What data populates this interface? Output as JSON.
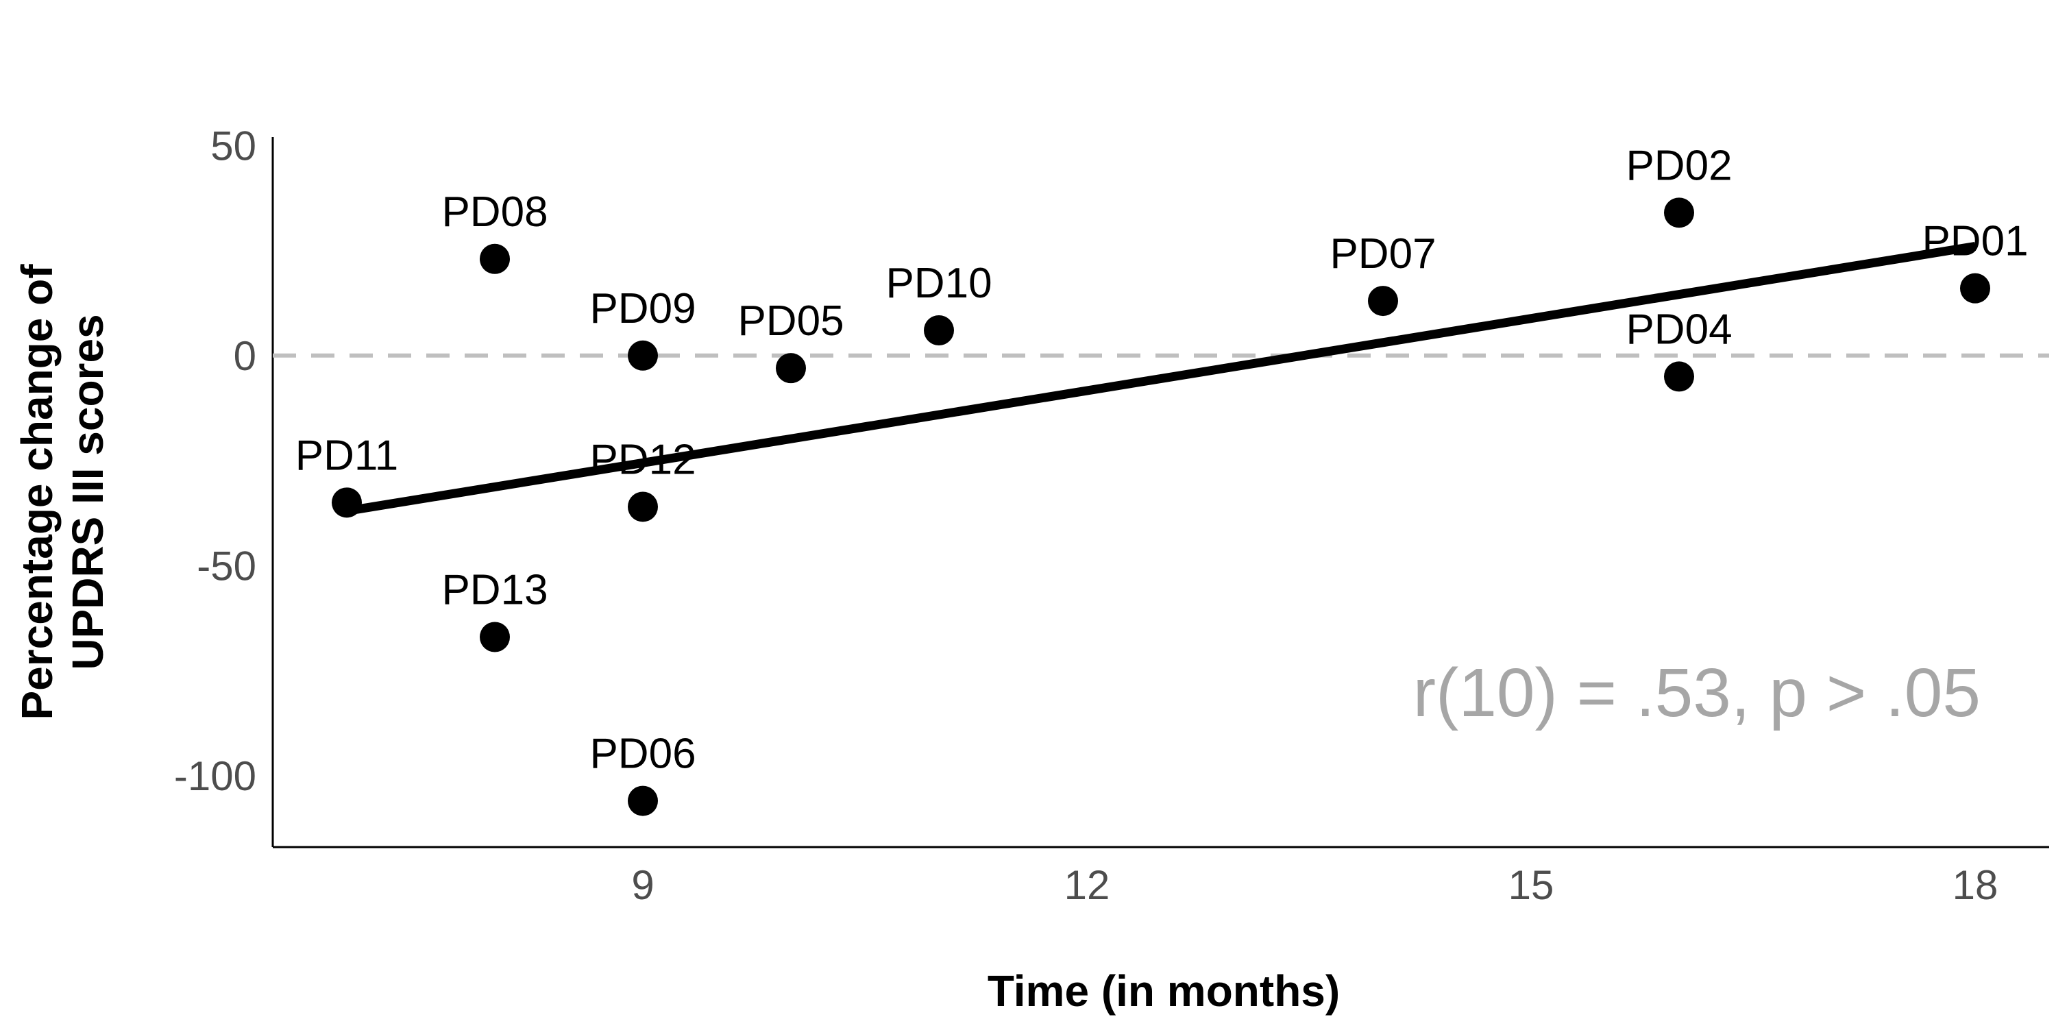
{
  "chart_data": {
    "type": "scatter",
    "title": "",
    "xlabel": "Time (in months)",
    "ylabel_lines": [
      "Percentage change of",
      "UPDRS III scores"
    ],
    "xlim": [
      6.5,
      18.5
    ],
    "ylim": [
      -117,
      52
    ],
    "x_ticks": [
      9,
      12,
      15,
      18
    ],
    "y_ticks": [
      50,
      0,
      -50,
      -100
    ],
    "points": [
      {
        "label": "PD01",
        "x": 18,
        "y": 16
      },
      {
        "label": "PD02",
        "x": 16,
        "y": 34
      },
      {
        "label": "PD04",
        "x": 16,
        "y": -5
      },
      {
        "label": "PD05",
        "x": 10,
        "y": -3
      },
      {
        "label": "PD06",
        "x": 9,
        "y": -106
      },
      {
        "label": "PD07",
        "x": 14,
        "y": 13
      },
      {
        "label": "PD08",
        "x": 8,
        "y": 23
      },
      {
        "label": "PD09",
        "x": 9,
        "y": 0
      },
      {
        "label": "PD10",
        "x": 11,
        "y": 6
      },
      {
        "label": "PD11",
        "x": 7,
        "y": -35
      },
      {
        "label": "PD12",
        "x": 9,
        "y": -36
      },
      {
        "label": "PD13",
        "x": 8,
        "y": -67
      }
    ],
    "regression_line": {
      "x": [
        7,
        18
      ],
      "y": [
        -37,
        26
      ]
    },
    "reference_line_y": 0,
    "annotation": "r(10) = .53, p > .05",
    "grid": false,
    "legend": "none",
    "colors": {
      "points": "#000000",
      "regression": "#000000",
      "reference": "#bfbfbf",
      "annotation": "#a6a6a6",
      "tick_labels": "#4d4d4d"
    }
  }
}
